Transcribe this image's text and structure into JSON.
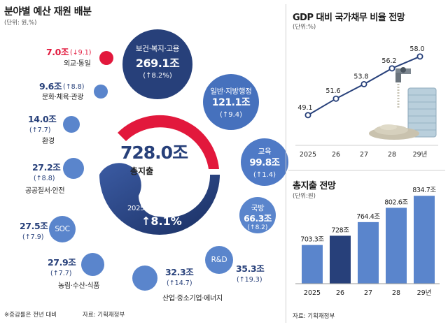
{
  "left": {
    "title": "분야별 예산 재원 배분",
    "unit": "(단위: 원,%)",
    "footnote": "※증감률은 전년 대비",
    "source": "자료: 기획재정부",
    "total_value": "728.0조",
    "total_label": "총지출",
    "growth_label": "2025년 본예산 대비",
    "growth_value": "↑8.1%",
    "items": [
      {
        "name": "보건·복지·고용",
        "value": "269.1조",
        "change": "(↑8.2%)"
      },
      {
        "name": "일반·지방행정",
        "value": "121.1조",
        "change": "(↑9.4)"
      },
      {
        "name": "교육",
        "value": "99.8조",
        "change": "(↑1.4)"
      },
      {
        "name": "국방",
        "value": "66.3조",
        "change": "(↑8.2)"
      },
      {
        "name": "R&D",
        "value": "35.3조",
        "change": "(↑19.3)"
      },
      {
        "name": "산업·중소기업·에너지",
        "value": "32.3조",
        "change": "(↑14.7)"
      },
      {
        "name": "농림·수산·식품",
        "value": "27.9조",
        "change": "(↑7.7)"
      },
      {
        "name": "SOC",
        "value": "27.5조",
        "change": "(↑7.9)"
      },
      {
        "name": "공공질서·안전",
        "value": "27.2조",
        "change": "(↑8.8)"
      },
      {
        "name": "환경",
        "value": "14.0조",
        "change": "(↑7.7)"
      },
      {
        "name": "문화·체육·관광",
        "value": "9.6조",
        "change": "(↑8.8)"
      },
      {
        "name": "외교·통일",
        "value": "7.0조",
        "change": "(↓9.1)"
      }
    ]
  },
  "chart_data": [
    {
      "type": "line",
      "title": "GDP 대비 국가채무 비율 전망",
      "unit": "(단위:%)",
      "categories": [
        "2025",
        "26",
        "27",
        "28",
        "29년"
      ],
      "values": [
        49.1,
        51.6,
        53.8,
        56.2,
        58.0
      ],
      "value_labels": [
        "49.1",
        "51.6",
        "53.8",
        "56.2",
        "58.0"
      ],
      "ylim": [
        46,
        60
      ],
      "grid": false,
      "colors": {
        "line": "#27407a",
        "marker_fill": "#ffffff"
      }
    },
    {
      "type": "bar",
      "title": "총지출 전망",
      "unit": "(단위:원)",
      "source": "자료: 기획재정부",
      "categories": [
        "2025",
        "26",
        "27",
        "28",
        "29년"
      ],
      "values": [
        703.3,
        728.0,
        764.4,
        802.6,
        834.7
      ],
      "value_labels": [
        "703.3조",
        "728조",
        "764.4조",
        "802.6조",
        "834.7조"
      ],
      "ylim": [
        600,
        850
      ],
      "grid": false,
      "colors": {
        "bar": "#5a85cc",
        "highlight": "#27407a"
      }
    }
  ],
  "colors": {
    "navy": "#27407a",
    "blue": "#5a85cc",
    "red": "#e2183c"
  }
}
